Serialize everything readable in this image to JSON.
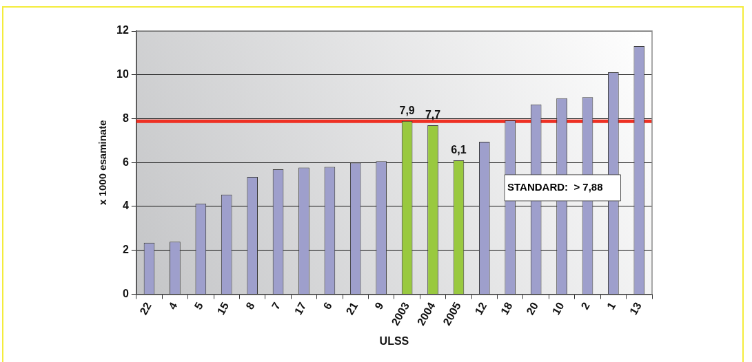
{
  "chart_data": {
    "type": "bar",
    "xlabel": "ULSS",
    "ylabel": "x 1000 esaminate",
    "categories": [
      "22",
      "4",
      "5",
      "15",
      "8",
      "7",
      "17",
      "6",
      "21",
      "9",
      "2003",
      "2004",
      "2005",
      "12",
      "18",
      "20",
      "10",
      "2",
      "1",
      "13"
    ],
    "values": [
      2.34,
      2.39,
      4.13,
      4.54,
      5.35,
      5.69,
      5.77,
      5.8,
      5.99,
      6.06,
      7.9,
      7.7,
      6.1,
      6.95,
      7.92,
      8.65,
      8.93,
      8.98,
      10.12,
      11.31
    ],
    "colors": [
      "#9e9fcc",
      "#9e9fcc",
      "#9e9fcc",
      "#9e9fcc",
      "#9e9fcc",
      "#9e9fcc",
      "#9e9fcc",
      "#9e9fcc",
      "#9e9fcc",
      "#9e9fcc",
      "#99c93f",
      "#99c93f",
      "#99c93f",
      "#9e9fcc",
      "#9e9fcc",
      "#9e9fcc",
      "#9e9fcc",
      "#9e9fcc",
      "#9e9fcc",
      "#9e9fcc"
    ],
    "value_labels": [
      null,
      null,
      null,
      null,
      null,
      null,
      null,
      null,
      null,
      null,
      "7,9",
      "7,7",
      "6,1",
      null,
      null,
      null,
      null,
      null,
      null,
      null
    ],
    "ylim": [
      0,
      12
    ],
    "yticks": [
      0,
      2,
      4,
      6,
      8,
      10,
      12
    ],
    "grid": "y",
    "ref_lines": [
      {
        "axis": "y",
        "value": 7.88,
        "color": "#ee3124"
      }
    ],
    "annotations": [
      "STANDARD:  > 7,88"
    ]
  }
}
